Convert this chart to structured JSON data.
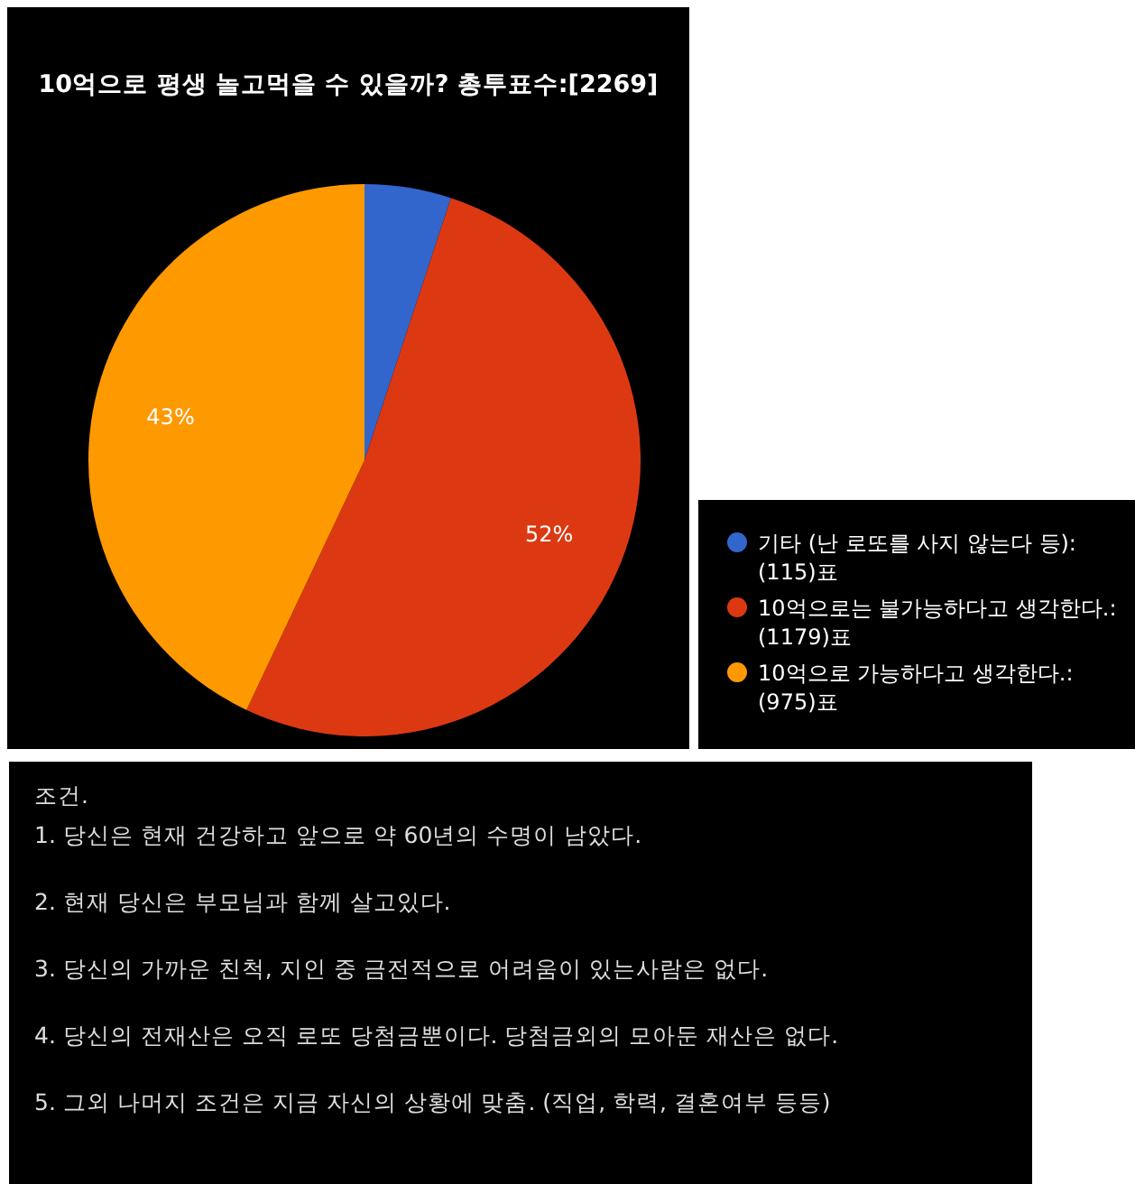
{
  "chart_data": {
    "type": "pie",
    "title": "10억으로 평생 놀고먹을 수 있을까? 총투표수:[2269]",
    "categories": [
      "기타 (난 로또를 사지 않는다 등):(115)표",
      "10억으로는 불가능하다고 생각한다.:(1179)표",
      "10억으로 가능하다고 생각한다.:(975)표"
    ],
    "values": [
      5.07,
      51.96,
      42.97
    ],
    "colors": [
      "#3366cc",
      "#dc3912",
      "#ff9900"
    ],
    "value_labels": [
      null,
      "52%",
      "43%"
    ],
    "legend": "right",
    "annotations": [
      "조건.",
      "1. 당신은 현재 건강하고 앞으로 약 60년의 수명이 남았다.",
      "2. 현재 당신은 부모님과 함께 살고있다.",
      "3. 당신의 가까운 친척, 지인 중 금전적으로 어려움이 있는사람은 없다.",
      "4. 당신의 전재산은 오직 로또 당첨금뿐이다. 당첨금외의 모아둔 재산은 없다.",
      "5. 그외 나머지 조건은 지금 자신의 상황에 맞춤. (직업, 학력, 결혼여부 등등)"
    ]
  }
}
